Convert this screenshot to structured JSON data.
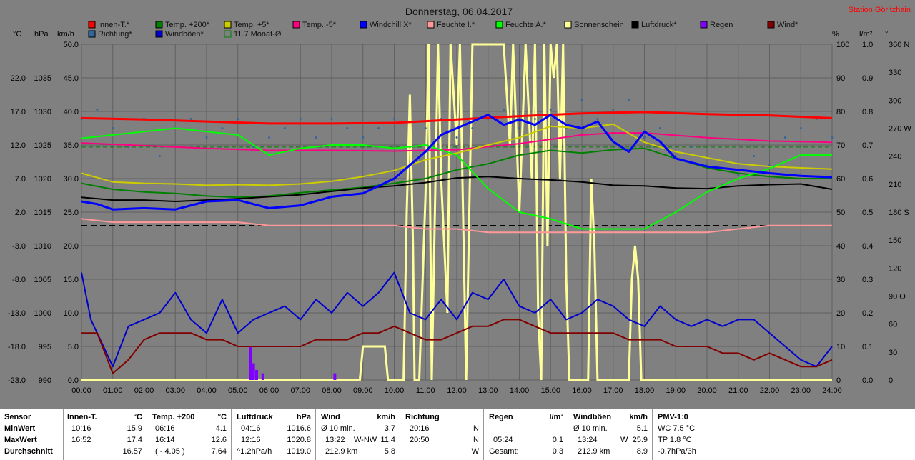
{
  "title": "Donnerstag, 06.04.2017",
  "station": "Station Göritzhain",
  "legend": [
    {
      "label": "Innen-T.*",
      "color": "#ff0000"
    },
    {
      "label": "Temp. +200*",
      "color": "#008000"
    },
    {
      "label": "Temp. +5*",
      "color": "#cccc00"
    },
    {
      "label": "Temp. -5*",
      "color": "#ff0080"
    },
    {
      "label": "Windchill X*",
      "color": "#0000ff"
    },
    {
      "label": "Feuchte I.*",
      "color": "#ff9999"
    },
    {
      "label": "Feuchte A.*",
      "color": "#00ff00"
    },
    {
      "label": "Sonnenschein",
      "color": "#ffff99"
    },
    {
      "label": "Luftdruck*",
      "color": "#000000"
    },
    {
      "label": "Regen",
      "color": "#8000ff"
    },
    {
      "label": "Wind*",
      "color": "#800000"
    },
    {
      "label": "Richtung*",
      "color": "#336699"
    },
    {
      "label": "Windböen*",
      "color": "#0000cc"
    },
    {
      "label": "11.7 Monat-Ø",
      "color": "#008000",
      "outline": true
    }
  ],
  "axis_units": {
    "celsius": "°C",
    "hpa": "hPa",
    "kmh": "km/h",
    "percent": "%",
    "lm2": "l/m²",
    "degree": "°"
  },
  "chart_data": {
    "type": "line",
    "x_ticks": [
      "00:00",
      "01:00",
      "02:00",
      "03:00",
      "04:00",
      "05:00",
      "06:00",
      "07:00",
      "08:00",
      "09:00",
      "10:00",
      "11:00",
      "12:00",
      "13:00",
      "14:00",
      "15:00",
      "16:00",
      "17:00",
      "18:00",
      "19:00",
      "20:00",
      "21:00",
      "22:00",
      "23:00",
      "24:00"
    ],
    "y_celsius_ticks": [
      "22.0",
      "17.0",
      "12.0",
      "7.0",
      "2.0",
      "-3.0",
      "-8.0",
      "-13.0",
      "-18.0",
      "-23.0"
    ],
    "y_hpa_ticks": [
      "1035",
      "1030",
      "1025",
      "1020",
      "1015",
      "1010",
      "1005",
      "1000",
      "995",
      "990"
    ],
    "y_kmh_ticks": [
      "50.0",
      "45.0",
      "40.0",
      "35.0",
      "30.0",
      "25.0",
      "20.0",
      "15.0",
      "10.0",
      "5.0",
      "0.0"
    ],
    "y_percent_ticks": [
      "100",
      "90",
      "80",
      "70",
      "60",
      "50",
      "40",
      "30",
      "20",
      "10",
      "0"
    ],
    "y_lm2_ticks": [
      "1.0",
      "0.9",
      "0.8",
      "0.7",
      "0.6",
      "0.5",
      "0.4",
      "0.3",
      "0.2",
      "0.1",
      "0.0"
    ],
    "y_deg_ticks": [
      "360 N",
      "330",
      "300",
      "270 W",
      "240",
      "210",
      "180 S",
      "150",
      "120",
      "90 O",
      "60",
      "30",
      "0"
    ],
    "ylim_celsius": [
      -23,
      27
    ],
    "ylim_hpa": [
      990,
      1040
    ],
    "ylim_kmh": [
      0,
      50
    ],
    "ylim_percent": [
      0,
      100
    ],
    "ylim_deg": [
      0,
      360
    ],
    "monthly_avg_celsius": 11.7,
    "series": [
      {
        "name": "Innen-T.*",
        "color": "#ff0000",
        "width": 3,
        "axis": "celsius",
        "x": [
          0,
          2,
          4,
          6,
          8,
          10,
          12,
          14,
          16,
          18,
          20,
          22,
          24
        ],
        "y": [
          16.0,
          15.8,
          15.5,
          15.2,
          15.2,
          15.3,
          15.8,
          16.3,
          16.7,
          16.9,
          16.6,
          16.4,
          16.0
        ]
      },
      {
        "name": "Temp. -5*",
        "color": "#ff0080",
        "width": 2,
        "axis": "celsius",
        "x": [
          0,
          2,
          4,
          6,
          8,
          10,
          12,
          14,
          16,
          17,
          18,
          20,
          22,
          24
        ],
        "y": [
          12.3,
          11.9,
          11.5,
          11.2,
          11.2,
          11.1,
          11.3,
          12.2,
          13.5,
          13.8,
          13.8,
          13.1,
          12.6,
          12.4
        ]
      },
      {
        "name": "Temp. +5*",
        "color": "#cccc00",
        "width": 2,
        "axis": "celsius",
        "x": [
          0,
          1,
          2,
          3,
          4,
          5,
          6,
          7,
          8,
          9,
          10,
          11,
          12,
          13,
          14,
          15,
          16,
          17,
          18,
          19,
          20,
          21,
          22,
          23,
          24
        ],
        "y": [
          7.8,
          6.5,
          6.3,
          6.2,
          6.0,
          6.1,
          6.0,
          6.2,
          6.6,
          7.3,
          8.2,
          9.8,
          10.8,
          12.0,
          13.1,
          14.8,
          14.5,
          15.1,
          12.4,
          11.0,
          10.1,
          9.2,
          8.8,
          8.6,
          8.4
        ]
      },
      {
        "name": "Temp. +200*",
        "color": "#008000",
        "width": 2,
        "axis": "celsius",
        "x": [
          0,
          1,
          2,
          3,
          4,
          5,
          6,
          7,
          8,
          9,
          10,
          11,
          12,
          13,
          14,
          15,
          16,
          17,
          18,
          19,
          20,
          21,
          22,
          23,
          24
        ],
        "y": [
          6.3,
          5.4,
          5.0,
          4.8,
          4.4,
          4.2,
          4.4,
          4.9,
          5.3,
          5.7,
          6.3,
          7.0,
          8.3,
          9.2,
          10.5,
          11.2,
          10.8,
          11.3,
          11.5,
          10.0,
          8.6,
          7.8,
          7.3,
          7.0,
          7.0
        ]
      },
      {
        "name": "Luftdruck*",
        "color": "#000000",
        "width": 2,
        "axis": "hpa",
        "x": [
          0,
          1,
          2,
          3,
          4,
          5,
          6,
          7,
          8,
          9,
          10,
          11,
          12,
          13,
          14,
          15,
          16,
          17,
          18,
          19,
          20,
          21,
          22,
          23,
          24
        ],
        "y": [
          1017.2,
          1016.8,
          1016.8,
          1016.6,
          1016.8,
          1017.0,
          1017.3,
          1017.6,
          1018.1,
          1018.6,
          1018.9,
          1019.4,
          1020.1,
          1020.3,
          1020.0,
          1019.8,
          1019.5,
          1019.0,
          1018.9,
          1018.6,
          1018.5,
          1018.9,
          1019.1,
          1019.2,
          1018.4
        ]
      },
      {
        "name": "Feuchte A.*",
        "color": "#00ff00",
        "width": 2,
        "axis": "percent",
        "x": [
          0,
          1,
          2,
          3,
          4,
          5,
          6,
          7,
          8,
          9,
          10,
          11,
          12,
          13,
          14,
          15,
          16,
          17,
          18,
          19,
          20,
          21,
          22,
          23,
          24
        ],
        "y": [
          72,
          73,
          74,
          75,
          74,
          73,
          67,
          69,
          70,
          70,
          69,
          70,
          67,
          57,
          50,
          48,
          45,
          45,
          45,
          50,
          56,
          60,
          63,
          67,
          67
        ]
      },
      {
        "name": "Feuchte I.*",
        "color": "#ff9999",
        "width": 2,
        "axis": "percent",
        "x": [
          0,
          1,
          2,
          3,
          4,
          5,
          6,
          7,
          8,
          9,
          10,
          11,
          12,
          13,
          14,
          15,
          16,
          17,
          18,
          19,
          20,
          21,
          22,
          23,
          24
        ],
        "y": [
          48,
          47,
          47,
          47,
          47,
          47,
          46,
          46,
          46,
          46,
          46,
          45,
          45,
          44,
          44,
          44,
          44,
          44,
          44,
          44,
          44,
          45,
          46,
          46,
          46
        ]
      },
      {
        "name": "Windchill X*",
        "color": "#0000ff",
        "width": 3,
        "axis": "celsius",
        "x": [
          0,
          0.5,
          1,
          2,
          3,
          4,
          5,
          6,
          7,
          8,
          9,
          10,
          10.5,
          11,
          11.5,
          12,
          12.5,
          13,
          13.5,
          14,
          14.5,
          15,
          15.5,
          16,
          16.5,
          17,
          17.5,
          18,
          18.5,
          19,
          20,
          21,
          22,
          23,
          24
        ],
        "y": [
          3.6,
          3.2,
          2.4,
          2.6,
          2.4,
          3.6,
          3.8,
          2.6,
          3.0,
          4.3,
          4.8,
          7.0,
          9.0,
          11.0,
          13.5,
          14.5,
          15.5,
          16.5,
          15.0,
          15.8,
          15.0,
          16.5,
          15.0,
          14.5,
          15.5,
          12.5,
          11.0,
          14.0,
          12.5,
          10.0,
          8.8,
          8.3,
          7.8,
          7.4,
          7.2
        ]
      },
      {
        "name": "Windböen*",
        "color": "#0000cc",
        "width": 2,
        "axis": "kmh",
        "x": [
          0,
          0.3,
          0.6,
          1,
          1.5,
          2,
          2.5,
          3,
          3.5,
          4,
          4.5,
          5,
          5.5,
          6,
          6.5,
          7,
          7.5,
          8,
          8.5,
          9,
          9.5,
          10,
          10.5,
          11,
          11.5,
          12,
          12.5,
          13,
          13.5,
          14,
          14.5,
          15,
          15.5,
          16,
          16.5,
          17,
          17.5,
          18,
          18.5,
          19,
          19.5,
          20,
          20.5,
          21,
          21.5,
          22,
          22.5,
          23,
          23.5,
          24
        ],
        "y": [
          16,
          9,
          6,
          2,
          8,
          9,
          10,
          13,
          9,
          7,
          12,
          7,
          9,
          10,
          11,
          9,
          12,
          10,
          13,
          11,
          13,
          16,
          10,
          9,
          12,
          9,
          13,
          12,
          15,
          11,
          10,
          12,
          9,
          10,
          12,
          11,
          9,
          8,
          11,
          9,
          8,
          9,
          8,
          9,
          9,
          7,
          5,
          3,
          2,
          5
        ]
      },
      {
        "name": "Wind*",
        "color": "#800000",
        "width": 2,
        "axis": "kmh",
        "x": [
          0,
          0.5,
          1,
          1.5,
          2,
          2.5,
          3,
          3.5,
          4,
          4.5,
          5,
          5.5,
          6,
          6.5,
          7,
          7.5,
          8,
          8.5,
          9,
          9.5,
          10,
          10.5,
          11,
          11.5,
          12,
          12.5,
          13,
          13.5,
          14,
          14.5,
          15,
          15.5,
          16,
          16.5,
          17,
          17.5,
          18,
          18.5,
          19,
          19.5,
          20,
          20.5,
          21,
          21.5,
          22,
          22.5,
          23,
          23.5,
          24
        ],
        "y": [
          7,
          7,
          1,
          3,
          6,
          7,
          7,
          7,
          6,
          6,
          5,
          5,
          5,
          5,
          5,
          6,
          6,
          6,
          7,
          7,
          8,
          7,
          6,
          6,
          7,
          8,
          8,
          9,
          9,
          8,
          7,
          7,
          7,
          7,
          7,
          6,
          6,
          6,
          5,
          5,
          5,
          4,
          4,
          3,
          4,
          3,
          2,
          2,
          3
        ]
      }
    ],
    "sunshine_percent": {
      "name": "Sonnenschein",
      "color": "#ffff99",
      "x": [
        0,
        8.9,
        9.0,
        9.7,
        9.8,
        10.3,
        10.4,
        10.5,
        10.6,
        10.65,
        10.8,
        11.0,
        11.1,
        11.2,
        11.4,
        11.5,
        11.7,
        11.8,
        12.0,
        12.1,
        12.3,
        12.5,
        12.7,
        13.0,
        13.5,
        13.7,
        13.8,
        14.0,
        14.2,
        14.4,
        14.5,
        14.6,
        14.7,
        14.8,
        14.9,
        15.0,
        15.1,
        15.2,
        15.3,
        15.4,
        15.5,
        15.6,
        16.2,
        16.3,
        16.4,
        16.5,
        17.5,
        17.6,
        17.7,
        17.8,
        17.9,
        24
      ],
      "y": [
        0,
        0,
        10,
        10,
        0,
        0,
        50,
        85,
        40,
        0,
        0,
        55,
        100,
        0,
        100,
        60,
        20,
        100,
        70,
        100,
        0,
        100,
        100,
        100,
        100,
        70,
        100,
        50,
        100,
        60,
        100,
        20,
        0,
        100,
        40,
        100,
        90,
        100,
        60,
        100,
        30,
        0,
        0,
        60,
        40,
        0,
        0,
        30,
        40,
        30,
        0,
        0
      ]
    },
    "rain_lm2": {
      "name": "Regen",
      "color": "#8000ff",
      "x": [
        5.4,
        5.5,
        5.6,
        5.8,
        8.1
      ],
      "y": [
        0.1,
        0.05,
        0.03,
        0.02,
        0.02
      ]
    },
    "direction_points": {
      "name": "Richtung*",
      "color": "#336699",
      "x": [
        0,
        0.5,
        1,
        1.5,
        2,
        2.5,
        3,
        3.5,
        4,
        4.5,
        5,
        5.5,
        6,
        6.5,
        7,
        7.5,
        8,
        8.5,
        9,
        9.5,
        10,
        10.5,
        11,
        11.5,
        12,
        12.5,
        13,
        13.5,
        14,
        14.5,
        15,
        15.5,
        16,
        16.5,
        17,
        17.5,
        18,
        18.5,
        19,
        19.5,
        20,
        20.5,
        21,
        21.5,
        22,
        22.5,
        23,
        23.5,
        24
      ],
      "y": [
        280,
        290,
        270,
        250,
        280,
        240,
        270,
        280,
        260,
        270,
        280,
        250,
        260,
        270,
        280,
        260,
        280,
        270,
        260,
        270,
        280,
        250,
        270,
        280,
        260,
        270,
        280,
        290,
        270,
        280,
        290,
        270,
        300,
        280,
        290,
        300,
        260,
        270,
        240,
        250,
        230,
        210,
        220,
        240,
        230,
        260,
        270,
        280,
        260
      ]
    }
  },
  "stats": {
    "sensor": {
      "header": "Sensor",
      "min": "MinWert",
      "max": "MaxWert",
      "avg": "Durchschnitt"
    },
    "innen": {
      "header": "Innen-T.",
      "unit": "°C",
      "min_t": "10:16",
      "min_v": "15.9",
      "max_t": "16:52",
      "max_v": "17.4",
      "avg_v": "16.57"
    },
    "temp": {
      "header": "Temp. +200",
      "unit": "°C",
      "min_t": "06:16",
      "min_v": "4.1",
      "max_t": "16:14",
      "max_v": "12.6",
      "avg_t": "( - 4.05 )",
      "avg_v": "7.64"
    },
    "druck": {
      "header": "Luftdruck",
      "unit": "hPa",
      "min_t": "04:16",
      "min_v": "1016.6",
      "max_t": "12:16",
      "max_v": "1020.8",
      "avg_t": "^1.2hPa/h",
      "avg_v": "1019.0"
    },
    "wind": {
      "header": "Wind",
      "unit": "km/h",
      "min_t": "Ø 10 min.",
      "min_v": "3.7",
      "max_t": "13:22",
      "max_d": "W-NW",
      "max_v": "11.4",
      "avg_t": "212.9 km",
      "avg_v": "5.8"
    },
    "richtung": {
      "header": "Richtung",
      "min_t": "20:16",
      "min_v": "N",
      "max_t": "20:50",
      "max_v": "N",
      "avg_v": "W"
    },
    "regen": {
      "header": "Regen",
      "unit": "l/m²",
      "max_t": "05:24",
      "max_v": "0.1",
      "avg_t": "Gesamt:",
      "avg_v": "0.3"
    },
    "boeen": {
      "header": "Windböen",
      "unit": "km/h",
      "min_t": "Ø 10 min.",
      "min_v": "5.1",
      "max_t": "13:24",
      "max_d": "W",
      "max_v": "25.9",
      "avg_t": "212.9 km",
      "avg_v": "8.9"
    },
    "pmv": {
      "header": "PMV-1:0",
      "min_v": "WC 7.5 °C",
      "max_v": "TP 1.8 °C",
      "avg_v": "-0.7hPa/3h"
    }
  }
}
